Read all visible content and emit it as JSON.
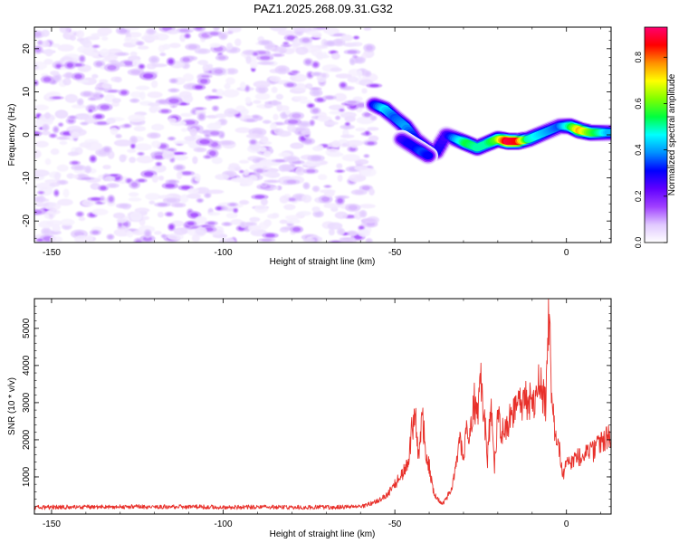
{
  "title": "PAZ1.2025.268.09.31.G32",
  "chart_data": [
    {
      "type": "heatmap",
      "name": "spectrogram",
      "xlabel": "Height of straight line (km)",
      "ylabel": "Frequency (Hz)",
      "xlim": [
        -155,
        13
      ],
      "ylim": [
        -25,
        25
      ],
      "xticks": [
        -150,
        -100,
        -50,
        0
      ],
      "xtick_labels": [
        "-150",
        "-100",
        "-50",
        "0"
      ],
      "yticks": [
        -20,
        -10,
        0,
        10,
        20
      ],
      "ytick_labels": [
        "-20",
        "-10",
        "0",
        "10",
        "20"
      ],
      "colorbar": {
        "label": "Normalized spectral amplitude",
        "range": [
          0,
          0.93
        ],
        "ticks": [
          0,
          0.2,
          0.4,
          0.6,
          0.8
        ],
        "tick_labels": [
          "0.0",
          "0.2",
          "0.4",
          "0.6",
          "0.8"
        ],
        "colors": [
          "#ffffff",
          "#e0c8ff",
          "#a040ff",
          "#6000ff",
          "#0000ff",
          "#0090ff",
          "#00ffff",
          "#00ff40",
          "#80ff00",
          "#ffff00",
          "#ff9000",
          "#ff0000",
          "#ff0070"
        ]
      },
      "noise_region": {
        "x_range": [
          -155,
          -56
        ],
        "y_range": [
          -25,
          25
        ],
        "amplitude_range": [
          0.0,
          0.15
        ]
      },
      "signal_track": {
        "x": [
          -56,
          -53,
          -50,
          -47,
          -44,
          -41,
          -38,
          -35,
          -32,
          -29,
          -26,
          -23,
          -20,
          -17,
          -14,
          -11,
          -8,
          -5,
          -2,
          1,
          4,
          7,
          10,
          13
        ],
        "freq": [
          7,
          6,
          4,
          2,
          -1,
          -3,
          -4,
          0,
          -1,
          -2,
          -3,
          -2,
          -1,
          -1.5,
          -1.5,
          -1,
          0,
          1,
          2,
          2,
          1,
          0.5,
          0.5,
          0.5
        ],
        "amplitude": [
          0.3,
          0.45,
          0.35,
          0.4,
          0.3,
          0.35,
          0.3,
          0.25,
          0.4,
          0.55,
          0.5,
          0.5,
          0.6,
          0.9,
          0.85,
          0.5,
          0.45,
          0.4,
          0.35,
          0.5,
          0.75,
          0.6,
          0.5,
          0.4
        ]
      },
      "signal_branch": {
        "x": [
          -48,
          -46,
          -44,
          -42,
          -40
        ],
        "freq": [
          -1,
          -2,
          -3,
          -4,
          -5
        ],
        "amplitude": [
          0.25,
          0.3,
          0.3,
          0.35,
          0.3
        ]
      }
    },
    {
      "type": "line",
      "name": "snr",
      "xlabel": "Height of straight line (km)",
      "ylabel": "SNR (10 * v/v)",
      "xlim": [
        -155,
        13
      ],
      "ylim": [
        0,
        5800
      ],
      "xticks": [
        -150,
        -100,
        -50,
        0
      ],
      "xtick_labels": [
        "-150",
        "-100",
        "-50",
        "0"
      ],
      "yticks": [
        1000,
        2000,
        3000,
        4000,
        5000
      ],
      "ytick_labels": [
        "1000",
        "2000",
        "3000",
        "4000",
        "5000"
      ],
      "color": "#e8302a",
      "series": [
        {
          "name": "SNR",
          "x": [
            -155,
            -140,
            -120,
            -100,
            -80,
            -60,
            -55,
            -52,
            -50,
            -48,
            -46,
            -45,
            -44,
            -43,
            -42,
            -41,
            -40,
            -39,
            -38,
            -37,
            -36,
            -35,
            -33,
            -31,
            -30,
            -29,
            -28,
            -27,
            -26,
            -25,
            -24,
            -23,
            -22,
            -21,
            -20,
            -19,
            -18,
            -16,
            -14,
            -12,
            -10,
            -9,
            -8,
            -7,
            -6,
            -5.5,
            -5,
            -4.5,
            -4,
            -3,
            -2,
            -1,
            0,
            2,
            4,
            6,
            8,
            10,
            12,
            13
          ],
          "y": [
            180,
            190,
            200,
            185,
            180,
            190,
            350,
            550,
            800,
            1050,
            1400,
            2300,
            2550,
            1500,
            2600,
            1750,
            1300,
            700,
            450,
            350,
            300,
            400,
            850,
            2000,
            1400,
            2400,
            2200,
            3100,
            2500,
            3750,
            2700,
            1500,
            2900,
            1200,
            2700,
            2200,
            2300,
            2650,
            2850,
            3050,
            3050,
            2900,
            3500,
            3300,
            2800,
            4600,
            5800,
            3200,
            2700,
            2000,
            1700,
            1100,
            1300,
            1450,
            1550,
            1600,
            1700,
            1900,
            2050,
            2100
          ]
        }
      ]
    }
  ]
}
